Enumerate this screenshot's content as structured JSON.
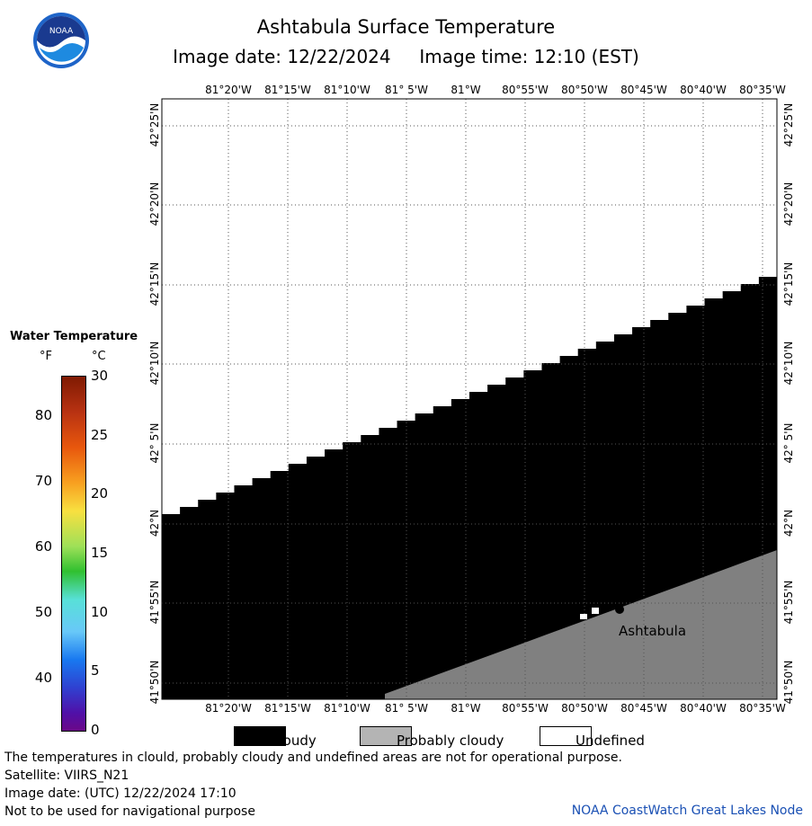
{
  "header": {
    "title": "Ashtabula Surface Temperature",
    "subtitle": "Image date: 12/22/2024     Image time: 12:10 (EST)",
    "logo_text": "NOAA"
  },
  "map": {
    "lon_labels": [
      "81°20'W",
      "81°15'W",
      "81°10'W",
      "81° 5'W",
      "81°W",
      "80°55'W",
      "80°50'W",
      "80°45'W",
      "80°40'W",
      "80°35'W"
    ],
    "lat_labels": [
      "42°25'N",
      "42°20'N",
      "42°15'N",
      "42°10'N",
      "42° 5'N",
      "42°N",
      "41°55'N",
      "41°50'N"
    ],
    "place_label": "Ashtabula",
    "colors": {
      "cloudy": "#000000",
      "probably_cloudy": "#808080",
      "undefined": "#ffffff",
      "grid": "#555555"
    }
  },
  "legend": {
    "title": "Water Temperature",
    "unit_f": "°F",
    "unit_c": "°C",
    "ticks_f": [
      "80",
      "70",
      "60",
      "50",
      "40"
    ],
    "ticks_c": [
      "30",
      "25",
      "20",
      "15",
      "10",
      "5",
      "0"
    ]
  },
  "key": {
    "cloudy": "Cloudy",
    "probably_cloudy": "Probably cloudy",
    "undefined": "Undefined"
  },
  "footer": {
    "warning": "The temperatures in clould, probably cloudy and undefined areas are not for operational purpose.",
    "satellite": "Satellite: VIIRS_N21",
    "utc_date": "Image date: (UTC) 12/22/2024  17:10",
    "nav_note": "Not to be used for navigational purpose",
    "credit": "NOAA CoastWatch Great Lakes Node"
  }
}
